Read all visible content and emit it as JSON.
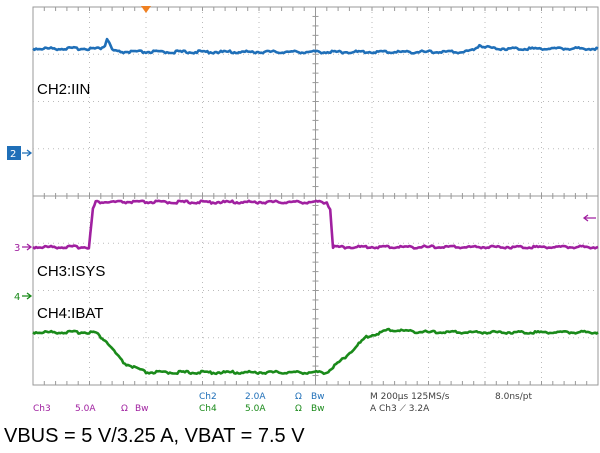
{
  "chart_data": {
    "type": "line",
    "title": "",
    "xlabel": "",
    "ylabel": "",
    "time_per_div_us": 200,
    "x_divisions": 10,
    "y_divisions": 8,
    "grid": true,
    "series": [
      {
        "name": "CH2:IIN",
        "channel": "Ch2",
        "color": "#1f6fb8",
        "scale": "2.0A",
        "x_us": [
          0,
          235,
          255,
          262,
          270,
          280,
          300,
          320,
          1520,
          1560,
          1580,
          1600,
          1640,
          2000
        ],
        "y_div": [
          3.7,
          3.7,
          3.9,
          4.4,
          4.1,
          3.6,
          3.46,
          3.46,
          3.46,
          3.6,
          3.95,
          3.82,
          3.7,
          3.7
        ]
      },
      {
        "name": "CH3:ISYS",
        "channel": "Ch3",
        "color": "#a020a0",
        "scale": "5.0A",
        "x_us": [
          0,
          198,
          212,
          222,
          1040,
          1052,
          1062,
          2000
        ],
        "y_div": [
          0,
          0,
          0.8,
          0.95,
          0.95,
          0.8,
          0,
          0
        ]
      },
      {
        "name": "CH4:IBAT",
        "channel": "Ch4",
        "color": "#1a8a1a",
        "scale": "5.0A",
        "x_us": [
          0,
          220,
          260,
          320,
          400,
          1040,
          1100,
          1180,
          1260,
          1400,
          2000
        ],
        "y_div": [
          -1.0,
          -1.0,
          -1.2,
          -1.65,
          -1.85,
          -1.85,
          -1.55,
          -1.1,
          -0.95,
          -1.0,
          -1.0
        ]
      }
    ],
    "markers": [
      {
        "label": "2",
        "color": "#1f6fb8"
      },
      {
        "label": "3",
        "color": "#a020a0"
      },
      {
        "label": "4",
        "color": "#1a8a1a"
      }
    ],
    "readout": {
      "row1": [
        {
          "text": "Ch2",
          "color": "#1f6fb8"
        },
        {
          "text": "2.0A",
          "color": "#1f6fb8"
        },
        {
          "text": "Ω",
          "color": "#1f6fb8"
        },
        {
          "text": "Bw",
          "color": "#1f6fb8"
        },
        {
          "text": "M 200µs 125MS/s",
          "color": "#404040"
        },
        {
          "text": "8.0ns/pt",
          "color": "#404040"
        }
      ],
      "row2": [
        {
          "text": "Ch3",
          "color": "#a020a0"
        },
        {
          "text": "5.0A",
          "color": "#a020a0"
        },
        {
          "text": "Ω",
          "color": "#a020a0"
        },
        {
          "text": "Bw",
          "color": "#a020a0"
        },
        {
          "text": "Ch4",
          "color": "#1a8a1a"
        },
        {
          "text": "5.0A",
          "color": "#1a8a1a"
        },
        {
          "text": "Ω",
          "color": "#1a8a1a"
        },
        {
          "text": "Bw",
          "color": "#1a8a1a"
        },
        {
          "text": "A  Ch3  ⟋  3.2A",
          "color": "#404040"
        }
      ]
    }
  },
  "caption": "VBUS = 5 V/3.25 A, VBAT = 7.5 V"
}
